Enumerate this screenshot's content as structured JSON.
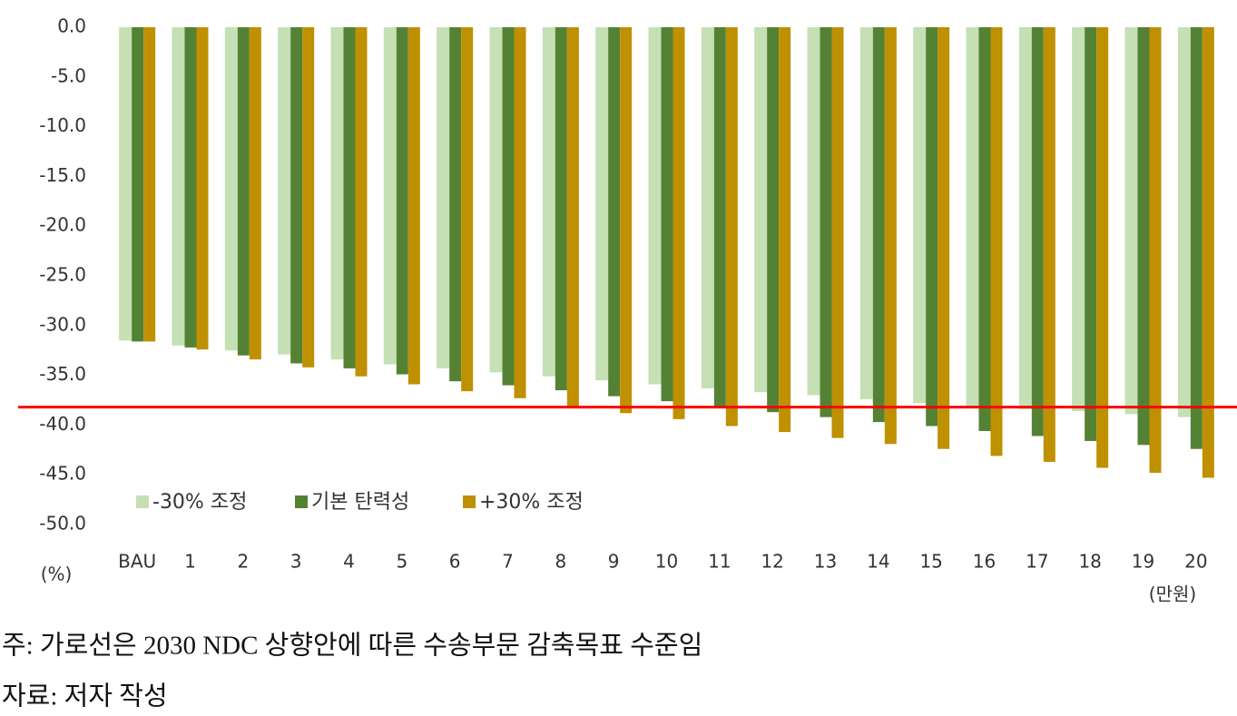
{
  "chart_data": {
    "type": "bar",
    "categories": [
      "BAU",
      "1",
      "2",
      "3",
      "4",
      "5",
      "6",
      "7",
      "8",
      "9",
      "10",
      "11",
      "12",
      "13",
      "14",
      "15",
      "16",
      "17",
      "18",
      "19",
      "20"
    ],
    "series": [
      {
        "name": "-30% 조정",
        "color": "#c5e0b4",
        "values": [
          -31.5,
          -32.0,
          -32.5,
          -32.9,
          -33.4,
          -33.9,
          -34.3,
          -34.7,
          -35.1,
          -35.5,
          -35.9,
          -36.3,
          -36.7,
          -37.0,
          -37.4,
          -37.8,
          -38.1,
          -38.4,
          -38.6,
          -38.9,
          -39.2
        ]
      },
      {
        "name": "기본 탄력성",
        "color": "#548235",
        "values": [
          -31.6,
          -32.2,
          -33.0,
          -33.8,
          -34.3,
          -34.9,
          -35.6,
          -36.0,
          -36.5,
          -37.1,
          -37.6,
          -38.1,
          -38.7,
          -39.2,
          -39.7,
          -40.1,
          -40.6,
          -41.1,
          -41.6,
          -42.0,
          -42.4
        ]
      },
      {
        "name": "+30% 조정",
        "color": "#bf9000",
        "values": [
          -31.6,
          -32.4,
          -33.4,
          -34.2,
          -35.1,
          -35.9,
          -36.6,
          -37.3,
          -38.1,
          -38.8,
          -39.4,
          -40.1,
          -40.7,
          -41.3,
          -41.9,
          -42.4,
          -43.1,
          -43.7,
          -44.3,
          -44.8,
          -45.3
        ]
      }
    ],
    "ylim": [
      -50,
      0
    ],
    "yticks": [
      {
        "value": 0,
        "label": "0.0"
      },
      {
        "value": -5,
        "label": "-5.0"
      },
      {
        "value": -10,
        "label": "-10.0"
      },
      {
        "value": -15,
        "label": "-15.0"
      },
      {
        "value": -20,
        "label": "-20.0"
      },
      {
        "value": -25,
        "label": "-25.0"
      },
      {
        "value": -30,
        "label": "-30.0"
      },
      {
        "value": -35,
        "label": "-35.0"
      },
      {
        "value": -40,
        "label": "-40.0"
      },
      {
        "value": -45,
        "label": "-45.0"
      },
      {
        "value": -50,
        "label": "-50.0"
      }
    ],
    "y_unit": "(%)",
    "x_unit": "(만원)",
    "reference_line": -38.2,
    "reference_color": "#ff0000",
    "grid": false,
    "notes": [
      "주: 가로선은 2030 NDC 상향안에 따른 수송부문 감축목표 수준임",
      "자료: 저자 작성"
    ]
  }
}
